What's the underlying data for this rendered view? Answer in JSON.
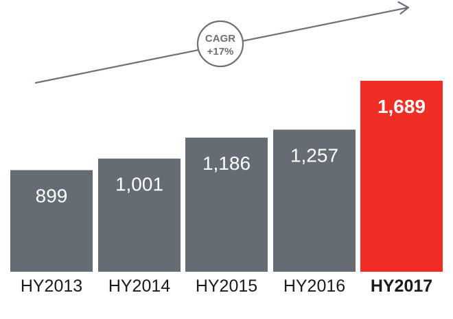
{
  "colors": {
    "bar": "#656c73",
    "highlight": "#ee2e24",
    "arrow": "#6b7176"
  },
  "cagr": {
    "label_line1": "CAGR",
    "label_line2": "+17%"
  },
  "chart_data": {
    "type": "bar",
    "categories": [
      "HY2013",
      "HY2014",
      "HY2015",
      "HY2016",
      "HY2017"
    ],
    "values": [
      899,
      1001,
      1186,
      1257,
      1689
    ],
    "value_labels": [
      "899",
      "1,001",
      "1,186",
      "1,257",
      "1,689"
    ],
    "highlight_index": 4,
    "title": "",
    "xlabel": "",
    "ylabel": "",
    "ylim": [
      0,
      1689
    ],
    "grid": false,
    "legend": "none"
  }
}
